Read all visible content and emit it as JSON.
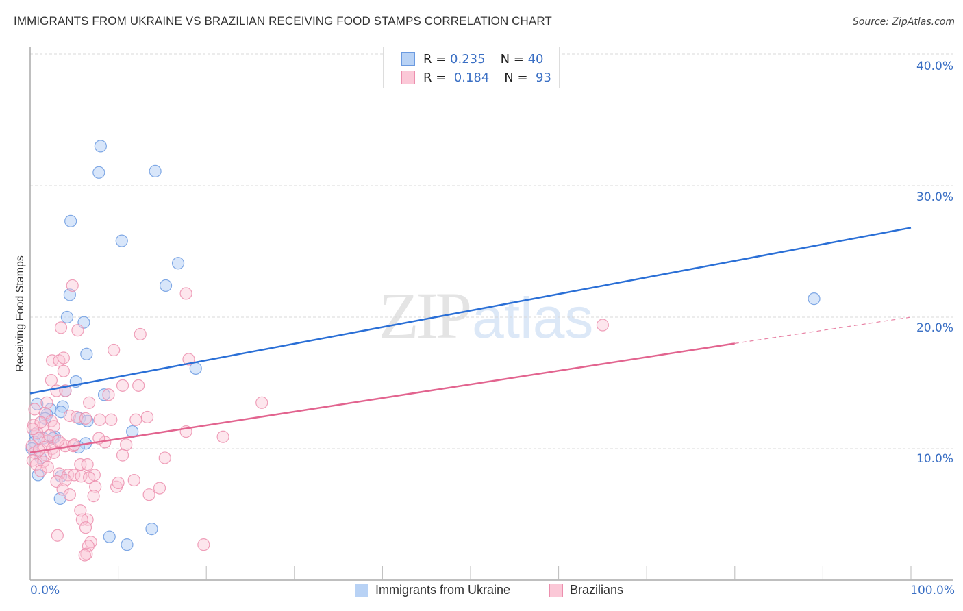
{
  "header": {
    "title": "IMMIGRANTS FROM UKRAINE VS BRAZILIAN RECEIVING FOOD STAMPS CORRELATION CHART",
    "source": "Source: ZipAtlas.com"
  },
  "watermark": {
    "zip": "ZIP",
    "atlas": "atlas"
  },
  "legend_top": {
    "rows": [
      {
        "r_label": "R = ",
        "r_value": "0.235",
        "n_label": "N = ",
        "n_value": "40",
        "color": "#6b9ae0",
        "fill": "#b8d2f5"
      },
      {
        "r_label": "R = ",
        "r_value": "0.184",
        "n_label": "N = ",
        "n_value": "93",
        "color": "#ec8fae",
        "fill": "#fbc8d7"
      }
    ]
  },
  "legend_bottom": {
    "items": [
      {
        "label": "Immigrants from Ukraine",
        "color": "#6b9ae0",
        "fill": "#b8d2f5"
      },
      {
        "label": "Brazilians",
        "color": "#ec8fae",
        "fill": "#fbc8d7"
      }
    ]
  },
  "axes": {
    "ylabel": "Receiving Food Stamps",
    "x_ticks": [
      "0.0%",
      "100.0%"
    ],
    "y_ticks": [
      "10.0%",
      "20.0%",
      "30.0%",
      "40.0%"
    ]
  },
  "chart_data": {
    "type": "scatter",
    "title": "IMMIGRANTS FROM UKRAINE VS BRAZILIAN RECEIVING FOOD STAMPS CORRELATION CHART",
    "xlabel": "Immigrants from Ukraine",
    "ylabel": "Receiving Food Stamps",
    "xlim": [
      0,
      100
    ],
    "ylim": [
      0,
      42
    ],
    "x_tick_labels": [
      "0.0%",
      "100.0%"
    ],
    "y_tick_labels": [
      "10.0%",
      "20.0%",
      "30.0%",
      "40.0%"
    ],
    "grid": {
      "horizontal": true,
      "style": "dashed",
      "values": [
        10,
        20,
        30,
        40
      ]
    },
    "legend_position": "top-center",
    "series": [
      {
        "name": "Immigrants from Ukraine",
        "color": "#6b9ae0",
        "R": 0.235,
        "N": 40,
        "trend": {
          "x": [
            0,
            100
          ],
          "y": [
            14.2,
            26.8
          ]
        },
        "points": [
          [
            8.0,
            33.0
          ],
          [
            7.8,
            31.0
          ],
          [
            14.2,
            31.1
          ],
          [
            4.6,
            27.3
          ],
          [
            10.4,
            25.8
          ],
          [
            16.8,
            24.1
          ],
          [
            15.4,
            22.4
          ],
          [
            4.5,
            21.7
          ],
          [
            4.2,
            20.0
          ],
          [
            6.1,
            19.6
          ],
          [
            6.4,
            17.2
          ],
          [
            18.8,
            16.1
          ],
          [
            5.2,
            15.1
          ],
          [
            4.0,
            14.4
          ],
          [
            8.4,
            14.1
          ],
          [
            0.8,
            13.4
          ],
          [
            3.7,
            13.2
          ],
          [
            2.3,
            13.0
          ],
          [
            1.9,
            12.6
          ],
          [
            3.5,
            12.8
          ],
          [
            5.6,
            12.3
          ],
          [
            6.5,
            12.1
          ],
          [
            1.7,
            12.3
          ],
          [
            11.6,
            11.3
          ],
          [
            0.6,
            11.1
          ],
          [
            2.8,
            10.9
          ],
          [
            1.5,
            10.8
          ],
          [
            0.5,
            10.5
          ],
          [
            6.3,
            10.4
          ],
          [
            5.5,
            10.1
          ],
          [
            0.2,
            10.0
          ],
          [
            1.2,
            9.3
          ],
          [
            0.9,
            8.0
          ],
          [
            3.5,
            7.9
          ],
          [
            3.4,
            6.2
          ],
          [
            89.0,
            21.4
          ],
          [
            9.0,
            3.3
          ],
          [
            13.8,
            3.9
          ],
          [
            11.0,
            2.7
          ],
          [
            2.6,
            10.8
          ]
        ]
      },
      {
        "name": "Brazilians",
        "color": "#ec8fae",
        "R": 0.184,
        "N": 93,
        "trend": {
          "x": [
            0,
            80
          ],
          "y": [
            9.7,
            18.0
          ],
          "dashed_extension": {
            "x": [
              80,
              100
            ],
            "y": [
              18.0,
              20.0
            ]
          }
        },
        "points": [
          [
            4.8,
            22.4
          ],
          [
            17.7,
            21.8
          ],
          [
            3.5,
            19.2
          ],
          [
            5.4,
            19.0
          ],
          [
            12.5,
            18.7
          ],
          [
            9.5,
            17.5
          ],
          [
            2.5,
            16.7
          ],
          [
            3.3,
            16.7
          ],
          [
            3.8,
            16.9
          ],
          [
            18,
            16.8
          ],
          [
            3.8,
            15.9
          ],
          [
            2.4,
            15.2
          ],
          [
            3.0,
            14.4
          ],
          [
            10.5,
            14.8
          ],
          [
            12.3,
            14.8
          ],
          [
            4.0,
            14.4
          ],
          [
            8.9,
            14.1
          ],
          [
            1.9,
            13.5
          ],
          [
            26.3,
            13.5
          ],
          [
            6.7,
            13.5
          ],
          [
            1.7,
            12.7
          ],
          [
            4.5,
            12.5
          ],
          [
            5.3,
            12.4
          ],
          [
            6.3,
            12.3
          ],
          [
            7.9,
            12.2
          ],
          [
            9.2,
            12.2
          ],
          [
            13.3,
            12.4
          ],
          [
            12.0,
            12.2
          ],
          [
            2.4,
            12.1
          ],
          [
            0.4,
            11.8
          ],
          [
            1.5,
            11.7
          ],
          [
            2.7,
            11.7
          ],
          [
            0.8,
            11.2
          ],
          [
            17.7,
            11.3
          ],
          [
            21.9,
            10.9
          ],
          [
            1.0,
            10.8
          ],
          [
            2.0,
            10.6
          ],
          [
            3.5,
            10.4
          ],
          [
            8.5,
            10.5
          ],
          [
            10.9,
            10.3
          ],
          [
            0.2,
            10.2
          ],
          [
            1.6,
            10.1
          ],
          [
            2.5,
            10.0
          ],
          [
            4.0,
            10.2
          ],
          [
            4.9,
            10.2
          ],
          [
            0.5,
            9.7
          ],
          [
            1.8,
            9.5
          ],
          [
            2.7,
            9.7
          ],
          [
            10.5,
            9.5
          ],
          [
            15.3,
            9.3
          ],
          [
            0.3,
            9.1
          ],
          [
            1.5,
            9.0
          ],
          [
            0.7,
            8.8
          ],
          [
            5.7,
            8.8
          ],
          [
            6.5,
            8.8
          ],
          [
            1.2,
            8.3
          ],
          [
            3.3,
            8.1
          ],
          [
            4.3,
            8.0
          ],
          [
            5.0,
            8.0
          ],
          [
            5.8,
            7.9
          ],
          [
            7.3,
            8.0
          ],
          [
            3.0,
            7.5
          ],
          [
            6.7,
            7.8
          ],
          [
            4.0,
            7.6
          ],
          [
            11.8,
            7.6
          ],
          [
            7.4,
            7.1
          ],
          [
            9.8,
            7.1
          ],
          [
            3.7,
            6.9
          ],
          [
            14.7,
            7.0
          ],
          [
            4.5,
            6.5
          ],
          [
            7.2,
            6.4
          ],
          [
            13.5,
            6.5
          ],
          [
            5.7,
            5.3
          ],
          [
            6.5,
            4.6
          ],
          [
            5.9,
            4.6
          ],
          [
            6.3,
            4.0
          ],
          [
            3.1,
            3.4
          ],
          [
            6.9,
            2.9
          ],
          [
            6.6,
            2.6
          ],
          [
            6.4,
            2.0
          ],
          [
            6.2,
            1.9
          ],
          [
            19.7,
            2.7
          ],
          [
            0.5,
            13.0
          ],
          [
            1.2,
            12.0
          ],
          [
            0.3,
            11.5
          ],
          [
            2.2,
            11.0
          ],
          [
            3.2,
            10.6
          ],
          [
            1.0,
            9.9
          ],
          [
            5.0,
            10.3
          ],
          [
            2.0,
            8.6
          ],
          [
            65.0,
            19.4
          ],
          [
            7.8,
            10.8
          ],
          [
            10.0,
            7.4
          ]
        ]
      }
    ]
  }
}
